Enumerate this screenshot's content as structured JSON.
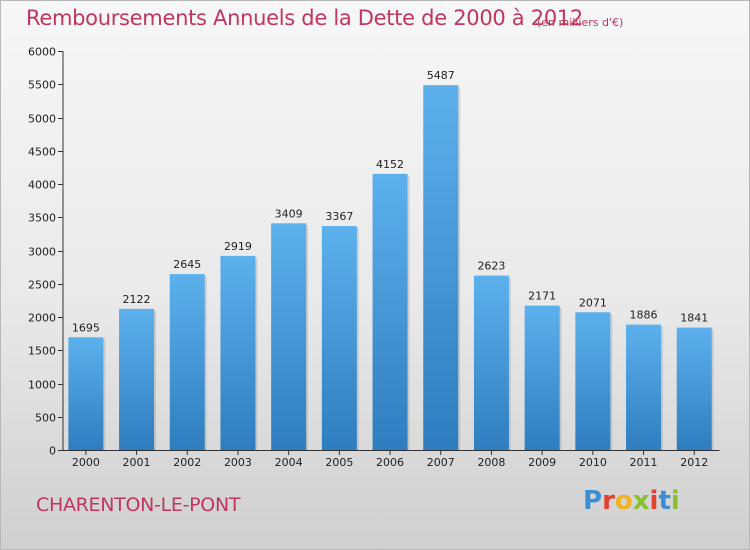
{
  "header": {
    "title": "Remboursements Annuels de la Dette de 2000 à 2012",
    "unit": "(en milliers d'€)"
  },
  "footer": {
    "place": "CHARENTON-LE-PONT",
    "brand": "Proxiti",
    "brand_letters": [
      {
        "ch": "P",
        "color": "#3a8fd4"
      },
      {
        "ch": "r",
        "color": "#e2402f"
      },
      {
        "ch": "o",
        "color": "#f0b321"
      },
      {
        "ch": "x",
        "color": "#8cbf2e"
      },
      {
        "ch": "i",
        "color": "#e2402f"
      },
      {
        "ch": "t",
        "color": "#3a8fd4"
      },
      {
        "ch": "i",
        "color": "#8cbf2e"
      }
    ]
  },
  "colors": {
    "title": "#c0365d",
    "bar_top": "#5cb1ec",
    "bar_bottom": "#2f7dbf"
  },
  "chart_data": {
    "type": "bar",
    "title": "Remboursements Annuels de la Dette de 2000 à 2012",
    "subtitle": "(en milliers d'€)",
    "xlabel": "",
    "ylabel": "",
    "categories": [
      "2000",
      "2001",
      "2002",
      "2003",
      "2004",
      "2005",
      "2006",
      "2007",
      "2008",
      "2009",
      "2010",
      "2011",
      "2012"
    ],
    "values": [
      1695,
      2122,
      2645,
      2919,
      3409,
      3367,
      4152,
      5487,
      2623,
      2171,
      2071,
      1886,
      1841
    ],
    "ylim": [
      0,
      6000
    ],
    "yticks": [
      0,
      500,
      1000,
      1500,
      2000,
      2500,
      3000,
      3500,
      4000,
      4500,
      5000,
      5500,
      6000
    ],
    "grid": false,
    "legend": "none"
  }
}
